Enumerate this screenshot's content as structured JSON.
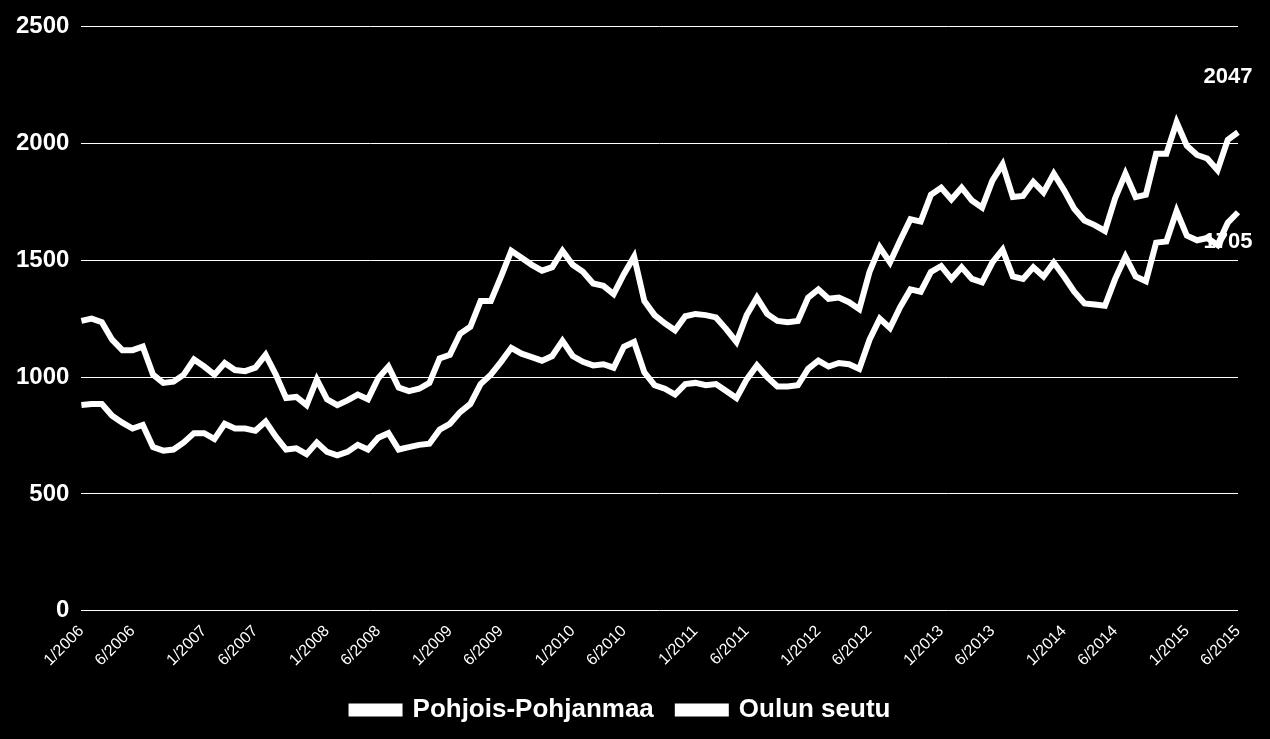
{
  "chart_data": {
    "type": "line",
    "categories": [
      "1/2006",
      null,
      null,
      null,
      null,
      "6/2006",
      null,
      null,
      null,
      null,
      null,
      null,
      "1/2007",
      null,
      null,
      null,
      null,
      "6/2007",
      null,
      null,
      null,
      null,
      null,
      null,
      "1/2008",
      null,
      null,
      null,
      null,
      "6/2008",
      null,
      null,
      null,
      null,
      null,
      null,
      "1/2009",
      null,
      null,
      null,
      null,
      "6/2009",
      null,
      null,
      null,
      null,
      null,
      null,
      "1/2010",
      null,
      null,
      null,
      null,
      "6/2010",
      null,
      null,
      null,
      null,
      null,
      null,
      "1/2011",
      null,
      null,
      null,
      null,
      "6/2011",
      null,
      null,
      null,
      null,
      null,
      null,
      "1/2012",
      null,
      null,
      null,
      null,
      "6/2012",
      null,
      null,
      null,
      null,
      null,
      null,
      "1/2013",
      null,
      null,
      null,
      null,
      "6/2013",
      null,
      null,
      null,
      null,
      null,
      null,
      "1/2014",
      null,
      null,
      null,
      null,
      "6/2014",
      null,
      null,
      null,
      null,
      null,
      null,
      "1/2015",
      null,
      null,
      null,
      null,
      "6/2015"
    ],
    "series": [
      {
        "name": "Pohjois-Pohjanmaa",
        "color": "#ffffff",
        "values": [
          1240,
          1250,
          1235,
          1160,
          1115,
          1115,
          1130,
          1010,
          975,
          980,
          1010,
          1075,
          1045,
          1010,
          1060,
          1030,
          1025,
          1040,
          1095,
          1010,
          910,
          915,
          880,
          990,
          905,
          880,
          900,
          925,
          905,
          995,
          1045,
          955,
          940,
          950,
          975,
          1080,
          1095,
          1185,
          1215,
          1325,
          1325,
          1430,
          1540,
          1510,
          1480,
          1455,
          1470,
          1540,
          1480,
          1450,
          1400,
          1390,
          1355,
          1440,
          1515,
          1325,
          1265,
          1230,
          1200,
          1260,
          1270,
          1265,
          1255,
          1205,
          1150,
          1265,
          1340,
          1270,
          1240,
          1235,
          1240,
          1340,
          1375,
          1335,
          1340,
          1320,
          1290,
          1450,
          1555,
          1490,
          1585,
          1675,
          1665,
          1780,
          1810,
          1760,
          1810,
          1755,
          1725,
          1840,
          1910,
          1770,
          1775,
          1835,
          1790,
          1870,
          1800,
          1720,
          1670,
          1650,
          1625,
          1765,
          1870,
          1770,
          1780,
          1955,
          1955,
          2090,
          1990,
          1950,
          1935,
          1885,
          2015,
          2047
        ]
      },
      {
        "name": "Oulun seutu",
        "color": "#ffffff",
        "values": [
          880,
          885,
          885,
          835,
          805,
          780,
          795,
          700,
          685,
          690,
          720,
          760,
          760,
          735,
          800,
          780,
          780,
          770,
          810,
          745,
          690,
          695,
          670,
          720,
          680,
          665,
          680,
          710,
          690,
          740,
          760,
          690,
          700,
          710,
          715,
          775,
          800,
          850,
          885,
          970,
          1010,
          1065,
          1125,
          1100,
          1085,
          1070,
          1090,
          1155,
          1090,
          1065,
          1050,
          1055,
          1040,
          1130,
          1150,
          1020,
          965,
          950,
          925,
          970,
          975,
          965,
          970,
          940,
          910,
          990,
          1050,
          1000,
          960,
          960,
          965,
          1035,
          1070,
          1045,
          1060,
          1055,
          1035,
          1160,
          1250,
          1210,
          1300,
          1375,
          1365,
          1450,
          1475,
          1420,
          1470,
          1420,
          1405,
          1490,
          1545,
          1430,
          1420,
          1470,
          1430,
          1490,
          1430,
          1365,
          1315,
          1310,
          1305,
          1420,
          1515,
          1430,
          1410,
          1575,
          1580,
          1710,
          1605,
          1585,
          1595,
          1565,
          1660,
          1705
        ]
      }
    ],
    "annotations": [
      {
        "series": "Pohjois-Pohjanmaa",
        "text": "2047"
      },
      {
        "series": "Oulun seutu",
        "text": "1705"
      }
    ],
    "ylim": [
      0,
      2500
    ],
    "yticks": [
      0,
      500,
      1000,
      1500,
      2000,
      2500
    ],
    "grid": true,
    "legend": "bottom"
  }
}
